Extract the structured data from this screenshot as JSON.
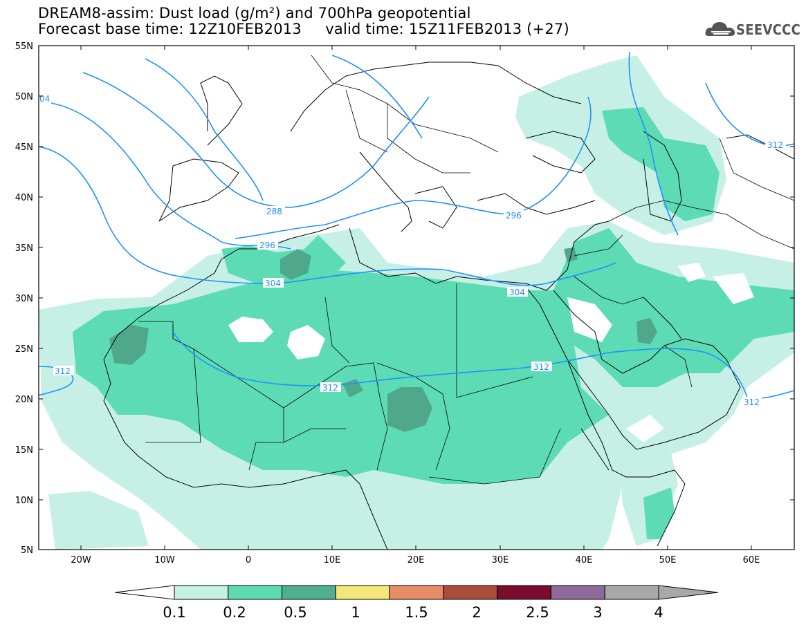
{
  "title_line1": "DREAM8-assim: Dust load (g/m²) and 700hPa geopotential",
  "title_line2": "Forecast base time: 12Z10FEB2013     valid time: 15Z11FEB2013 (+27)",
  "logo": "SEEVCCC",
  "lat_labels": [
    "55N",
    "50N",
    "45N",
    "40N",
    "35N",
    "30N",
    "25N",
    "20N",
    "15N",
    "10N",
    "5N"
  ],
  "lon_labels": [
    "20W",
    "10W",
    "0",
    "10E",
    "20E",
    "30E",
    "40E",
    "50E",
    "60E"
  ],
  "contour_labels": [
    "04",
    "288",
    "296",
    "296",
    "304",
    "304",
    "312",
    "312",
    "312",
    "312",
    "312"
  ],
  "colorbar": {
    "colors": [
      "#c6f0e6",
      "#5ddbb5",
      "#4fb08e",
      "#f4e678",
      "#e88c66",
      "#a84c3c",
      "#7a0c2e",
      "#8e6a9a",
      "#a8a8a8"
    ],
    "tick_labels": [
      "0.1",
      "0.2",
      "0.5",
      "1",
      "1.5",
      "2",
      "2.5",
      "3",
      "4"
    ]
  },
  "colors": {
    "light": "#c6f0e6",
    "medium": "#5ddbb5",
    "dark": "#4fa88a",
    "contour": "#1e90ff"
  }
}
